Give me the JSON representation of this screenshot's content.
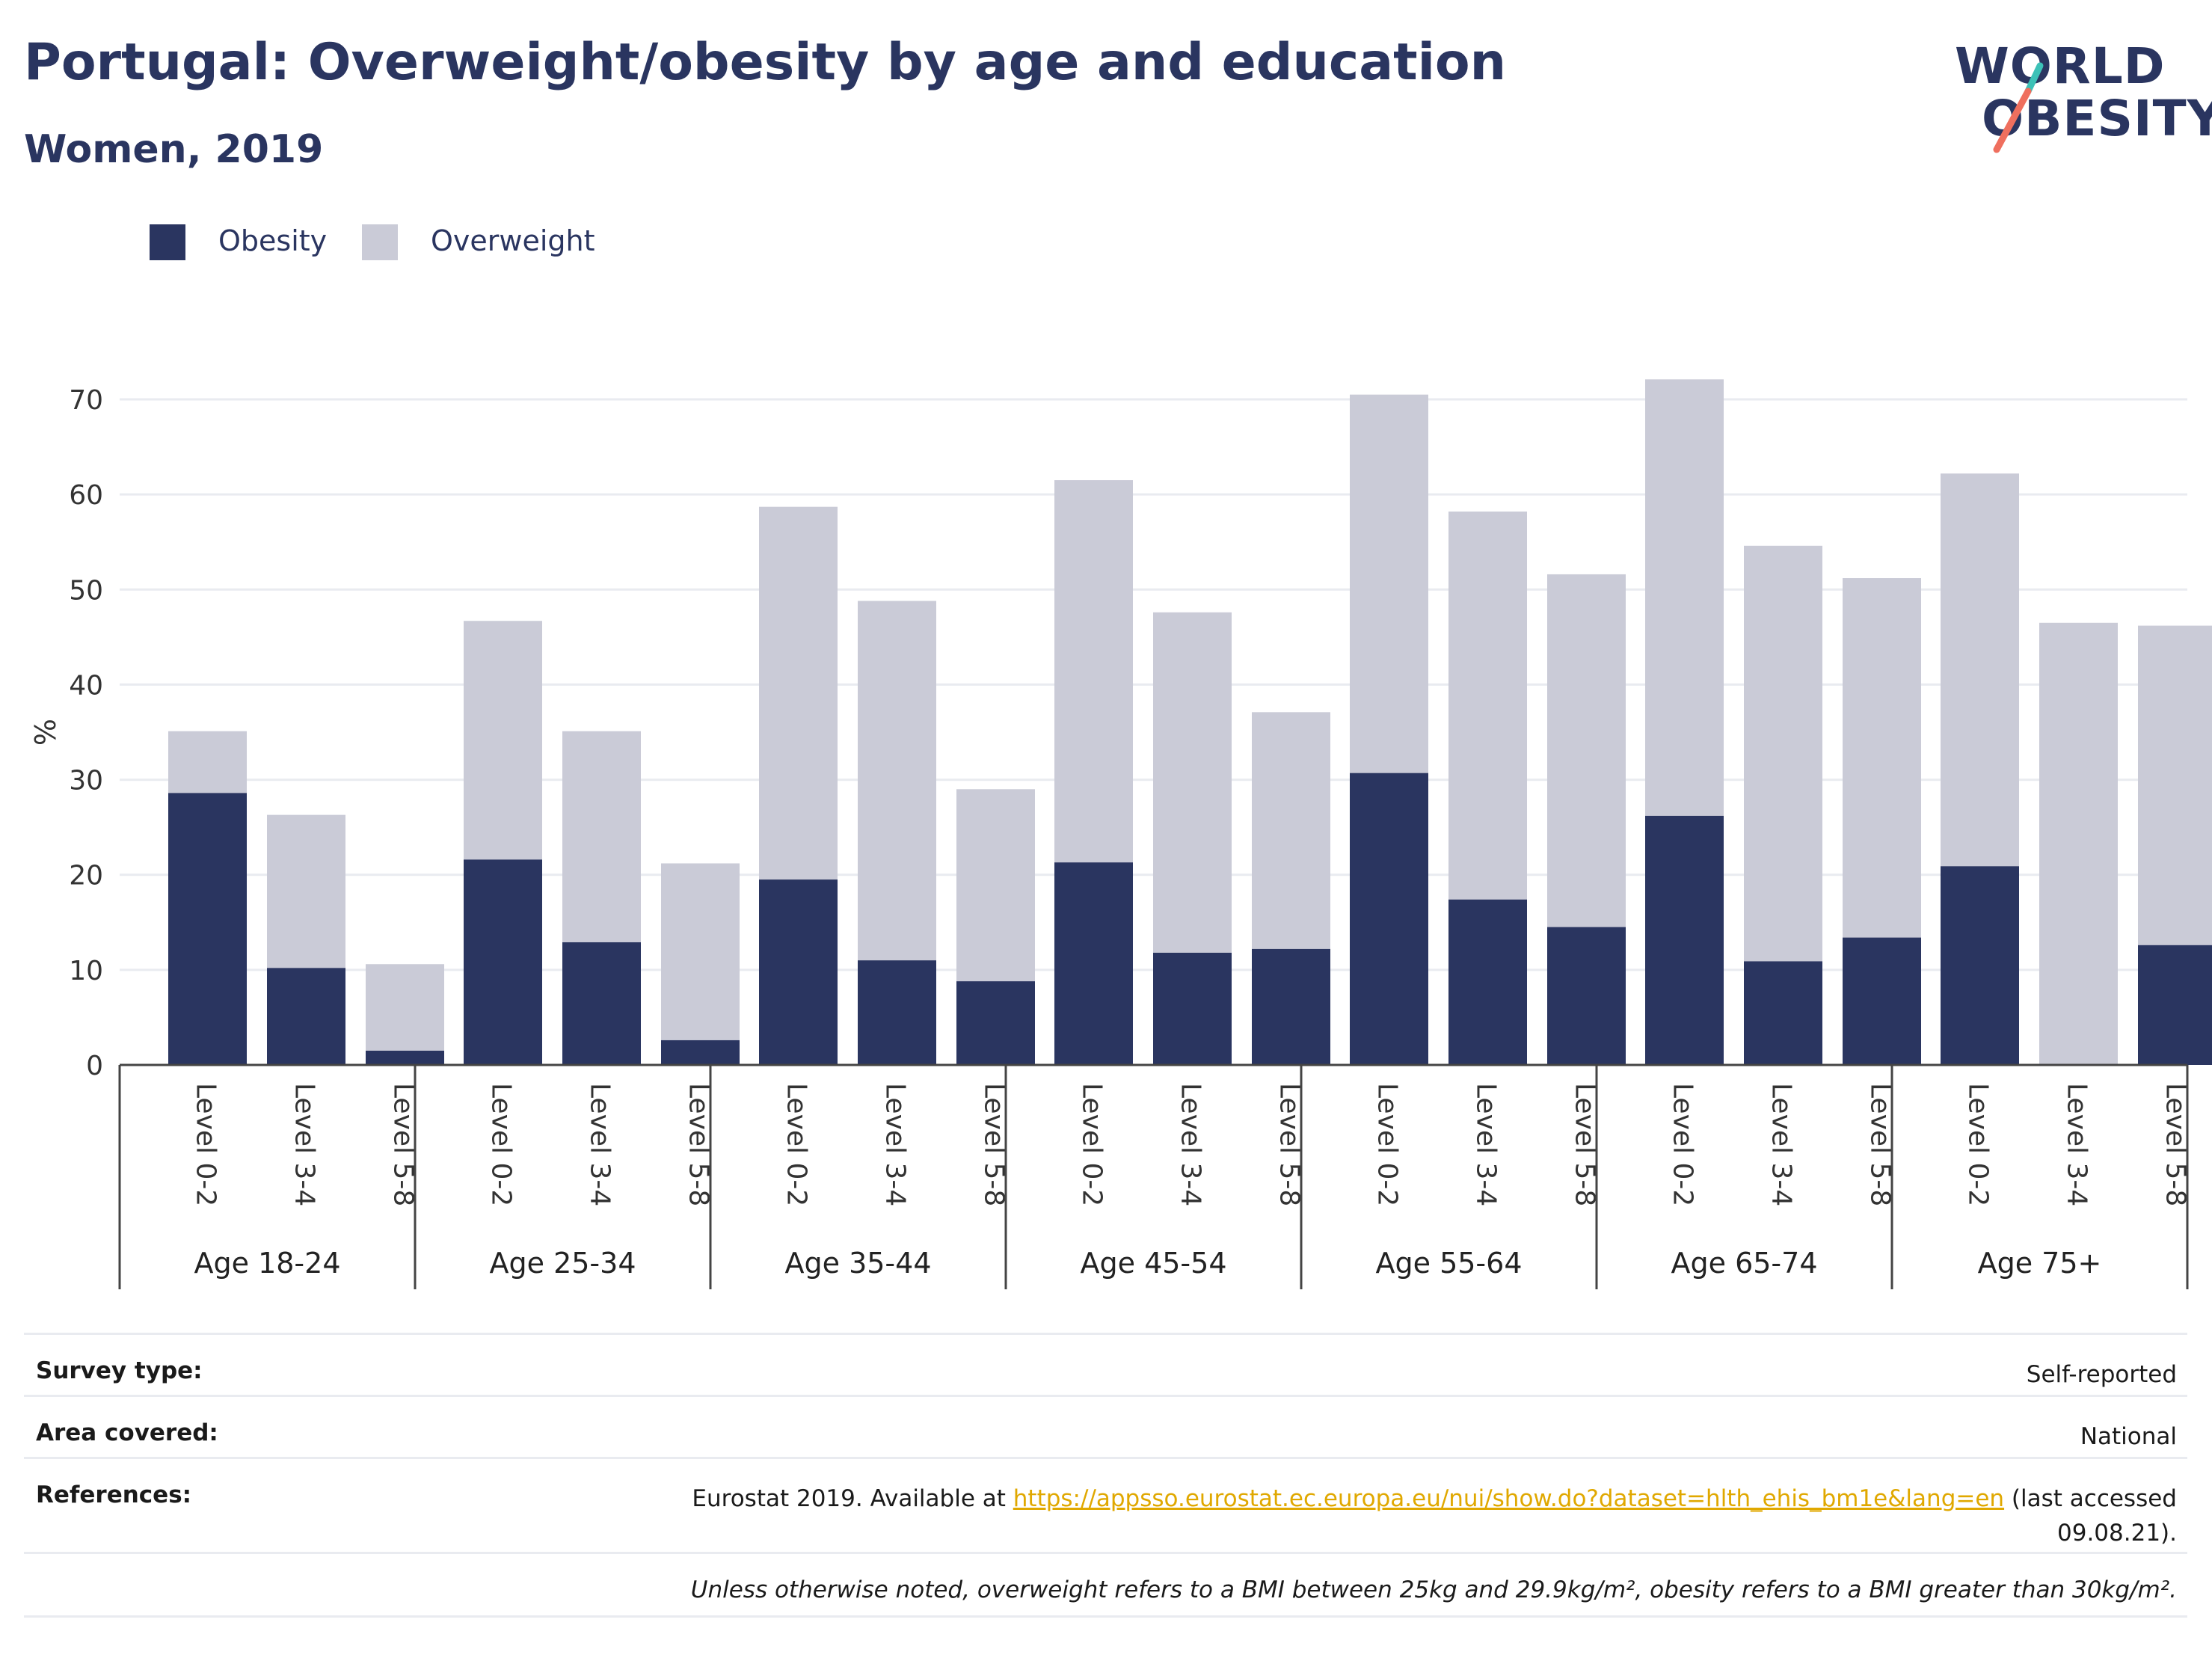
{
  "header": {
    "title": "Portugal: Overweight/obesity by age and education",
    "subtitle": "Women, 2019"
  },
  "logo": {
    "line1": "WORLD",
    "line2": "OBESITY",
    "slash_colors": [
      "#3cc1b7",
      "#ef6f5e"
    ]
  },
  "colors": {
    "obesity": "#2a3560",
    "overweight": "#cacbd7",
    "grid": "#e9ebf0",
    "axis": "#444444"
  },
  "legend": {
    "items": [
      {
        "label": "Obesity",
        "color": "#2a3560"
      },
      {
        "label": "Overweight",
        "color": "#cacbd7"
      }
    ]
  },
  "chart_data": {
    "type": "bar",
    "stacked": true,
    "ylabel": "%",
    "ylim": [
      0,
      74
    ],
    "yticks": [
      0,
      10,
      20,
      30,
      40,
      50,
      60,
      70
    ],
    "grid": true,
    "legend_position": "top-left",
    "groups": [
      "Age 18-24",
      "Age 25-34",
      "Age 35-44",
      "Age 45-54",
      "Age 55-64",
      "Age 65-74",
      "Age 75+"
    ],
    "levels": [
      "Level 0-2",
      "Level 3-4",
      "Level 5-8"
    ],
    "series": [
      {
        "name": "Obesity",
        "values": [
          28.6,
          10.2,
          1.5,
          21.6,
          12.9,
          2.6,
          19.5,
          11.0,
          8.8,
          21.3,
          11.8,
          12.2,
          30.7,
          17.4,
          14.5,
          26.2,
          10.9,
          13.4,
          20.9,
          0,
          12.6
        ]
      },
      {
        "name": "Overweight",
        "values": [
          6.5,
          16.1,
          9.1,
          25.1,
          22.2,
          18.6,
          39.2,
          37.8,
          20.2,
          40.2,
          35.8,
          24.9,
          39.8,
          40.8,
          37.1,
          45.9,
          43.7,
          37.8,
          41.3,
          46.5,
          33.6
        ]
      }
    ]
  },
  "footer": {
    "survey_type_label": "Survey type:",
    "survey_type_value": "Self-reported",
    "area_label": "Area covered:",
    "area_value": "National",
    "references_label": "References:",
    "references_prefix": "Eurostat 2019. Available at ",
    "references_link": "https://appsso.eurostat.ec.europa.eu/nui/show.do?dataset=hlth_ehis_bm1e&lang=en",
    "references_suffix": " (last accessed 09.08.21).",
    "note": "Unless otherwise noted, overweight refers to a BMI between 25kg and 29.9kg/m², obesity refers to a BMI greater than 30kg/m²."
  }
}
